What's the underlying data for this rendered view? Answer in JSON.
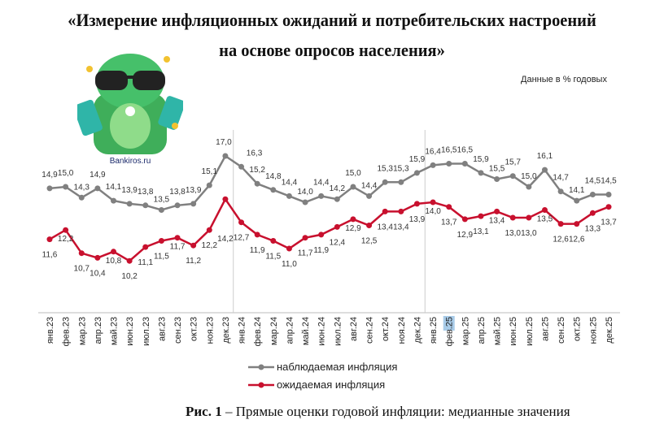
{
  "title_line1": "«Измерение инфляционных ожиданий и потребительских настроений",
  "title_line2": "на основе опросов населения»",
  "units_note": "Данные в % годовых",
  "logo_text": "Bankiros.ru",
  "caption": {
    "label": "Рис. 1",
    "text": " – Прямые оценки годовой инфляции: медианные значения"
  },
  "colors": {
    "observed": "#808080",
    "expected": "#c8102e"
  },
  "chart_data": {
    "type": "line",
    "categories": [
      "янв.23",
      "фев.23",
      "мар.23",
      "апр.23",
      "май.23",
      "июн.23",
      "июл.23",
      "авг.23",
      "сен.23",
      "окт.23",
      "ноя.23",
      "дек.23",
      "янв.24",
      "фев.24",
      "мар.24",
      "апр.24",
      "май.24",
      "июн.24",
      "июл.24",
      "авг.24",
      "сен.24",
      "окт.24",
      "ноя.24",
      "дек.24",
      "янв.25",
      "фев.25",
      "мар.25",
      "апр.25",
      "май.25",
      "июн.25",
      "июл.25",
      "авг.25",
      "сен.25",
      "окт.25",
      "ноя.25",
      "дек.25"
    ],
    "series": [
      {
        "name": "наблюдаемая инфляция",
        "values": [
          14.9,
          15.0,
          14.3,
          14.9,
          14.1,
          13.9,
          13.8,
          13.5,
          13.8,
          13.9,
          15.1,
          17.0,
          16.3,
          15.2,
          14.8,
          14.4,
          14.0,
          14.4,
          14.2,
          15.0,
          14.4,
          15.3,
          15.3,
          15.9,
          16.4,
          16.5,
          16.5,
          15.9,
          15.5,
          15.7,
          15.0,
          16.1,
          14.7,
          14.1,
          14.5,
          14.5
        ]
      },
      {
        "name": "ожидаемая инфляция",
        "values": [
          11.6,
          12.2,
          10.7,
          10.4,
          10.8,
          10.2,
          11.1,
          11.5,
          11.7,
          11.2,
          12.2,
          14.2,
          12.7,
          11.9,
          11.5,
          11.0,
          11.7,
          11.9,
          12.4,
          12.9,
          12.5,
          13.4,
          13.4,
          13.9,
          14.0,
          13.7,
          12.9,
          13.1,
          13.4,
          13.0,
          13.0,
          13.5,
          12.6,
          12.6,
          13.3,
          13.7
        ]
      }
    ],
    "ylim": [
      6.85,
      18
    ],
    "grid": false,
    "legend": "bottom-center",
    "year_separators_after": [
      "дек.23",
      "дек.24"
    ],
    "highlighted_tick": "фев.25"
  }
}
